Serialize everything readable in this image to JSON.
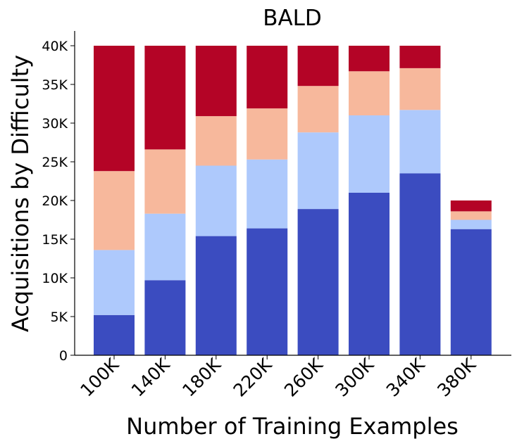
{
  "chart_data": {
    "type": "bar",
    "stacked": true,
    "title": "BALD",
    "xlabel": "Number of Training Examples",
    "ylabel": "Acquisitions by Difficulty",
    "categories": [
      "100K",
      "140K",
      "180K",
      "220K",
      "260K",
      "300K",
      "340K",
      "380K"
    ],
    "ylim": [
      0,
      42000
    ],
    "yticks": [
      0,
      5000,
      10000,
      15000,
      20000,
      25000,
      30000,
      35000,
      40000
    ],
    "ytick_labels": [
      "0",
      "5K",
      "10K",
      "15K",
      "20K",
      "25K",
      "30K",
      "35K",
      "40K"
    ],
    "grid": false,
    "legend": "none",
    "series": [
      {
        "color": "#3b4cc0",
        "values": [
          5200,
          9700,
          15400,
          16400,
          18900,
          21000,
          23500,
          16300
        ]
      },
      {
        "color": "#aec9fc",
        "values": [
          8400,
          8600,
          9100,
          8900,
          9900,
          10000,
          8200,
          1200
        ]
      },
      {
        "color": "#f7b89c",
        "values": [
          10200,
          8300,
          6400,
          6600,
          6000,
          5700,
          5400,
          1100
        ]
      },
      {
        "color": "#b40426",
        "values": [
          16200,
          13400,
          9100,
          8100,
          5200,
          3300,
          2900,
          1400
        ]
      }
    ]
  }
}
